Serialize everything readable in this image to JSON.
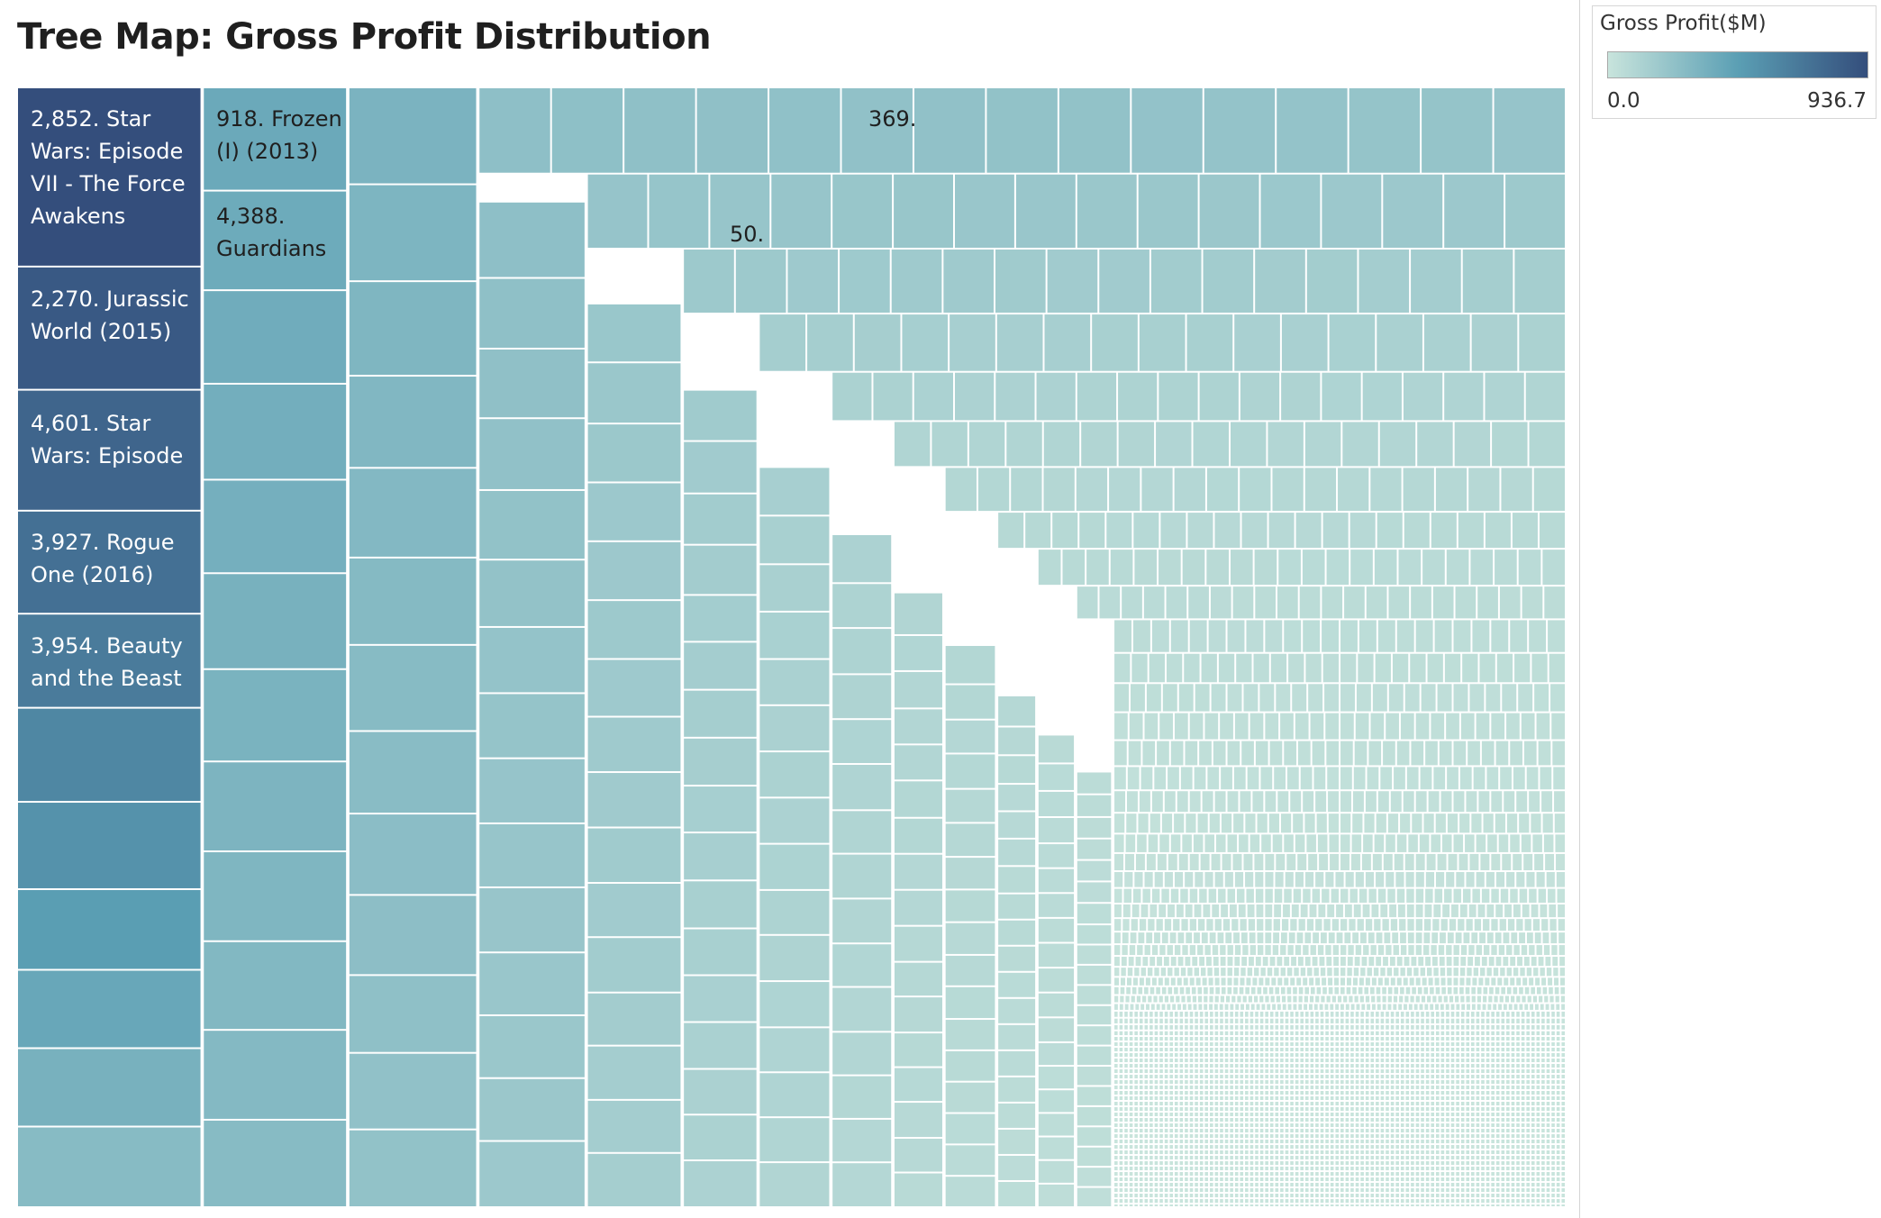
{
  "title": "Tree Map: Gross Profit Distribution",
  "legend": {
    "title": "Gross Profit($M)",
    "min_label": "0.0",
    "max_label": "936.7",
    "min": 0.0,
    "max": 936.7,
    "color_low": "#c8e4dc",
    "color_mid": "#5b9fb4",
    "color_high": "#344e7c"
  },
  "chart_data": {
    "type": "treemap",
    "value_field": "Gross Profit($M)",
    "color_range": [
      0.0,
      936.7
    ],
    "labeled_items": [
      {
        "label": "2,852. Star Wars: Episode VII - The Force Awakens",
        "value": 936.7
      },
      {
        "label": "918. Frozen (I) (2013)",
        "value": 400.7
      },
      {
        "label": "4,388. Guardians",
        "value": 389.8
      },
      {
        "label": "2,270. Jurassic World (2015)",
        "value": 652.3
      },
      {
        "label": "4,601. Star Wars: Episode",
        "value": 532.2
      },
      {
        "label": "3,927. Rogue One (2016)",
        "value": 532.2
      },
      {
        "label": "3,954. Beauty and the Beast",
        "value": 504.0
      },
      {
        "label": "369.",
        "value": 250.0
      },
      {
        "label": "50.",
        "value": 190.0
      }
    ]
  },
  "labels": {
    "l1": "2,852. Star",
    "l1b": "Wars: Episode",
    "l1c": "VII - The Force",
    "l1d": "Awakens",
    "l2": "2,270. Jurassic",
    "l2b": "World (2015)",
    "l3": "4,601. Star",
    "l3b": "Wars: Episode",
    "l4": "3,927. Rogue",
    "l4b": "One (2016)",
    "l5": "3,954. Beauty",
    "l5b": "and the Beast",
    "l6": "918. Frozen",
    "l6b": "(I) (2013)",
    "l7": "4,388.",
    "l7b": "Guardians",
    "l8": "369.",
    "l9": "50."
  }
}
